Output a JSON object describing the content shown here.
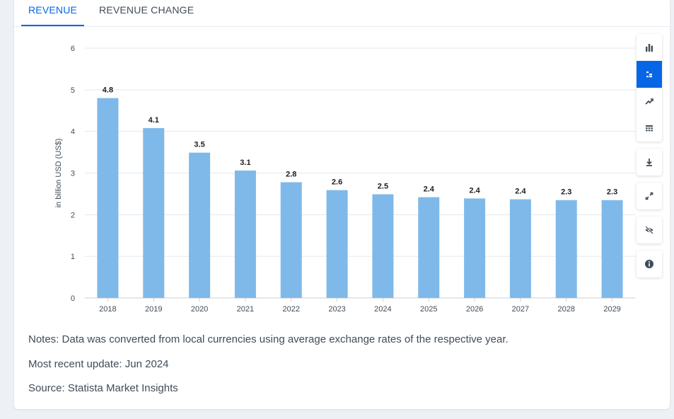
{
  "tabs": [
    {
      "label": "REVENUE",
      "active": true
    },
    {
      "label": "REVENUE CHANGE",
      "active": false
    }
  ],
  "chart_data": {
    "type": "bar",
    "title": "",
    "xlabel": "",
    "ylabel": "in billion USD (US$)",
    "categories": [
      "2018",
      "2019",
      "2020",
      "2021",
      "2022",
      "2023",
      "2024",
      "2025",
      "2026",
      "2027",
      "2028",
      "2029"
    ],
    "values": [
      4.8,
      4.08,
      3.49,
      3.06,
      2.78,
      2.59,
      2.49,
      2.42,
      2.39,
      2.37,
      2.35,
      2.35
    ],
    "data_labels": [
      "4.8",
      "4.1",
      "3.5",
      "3.1",
      "2.8",
      "2.6",
      "2.5",
      "2.4",
      "2.4",
      "2.4",
      "2.3",
      "2.3"
    ],
    "ylim": [
      0,
      6
    ],
    "yticks": [
      0,
      1,
      2,
      3,
      4,
      5,
      6
    ],
    "grid": true,
    "legend": "none",
    "bar_color": "#7fb9ea"
  },
  "notes": {
    "note": "Notes: Data was converted from local currencies using average exchange rates of the respective year.",
    "update": "Most recent update: Jun 2024",
    "source": "Source: Statista Market Insights"
  },
  "toolbar": {
    "chart_types": [
      {
        "icon": "bar-chart-icon",
        "active": false
      },
      {
        "icon": "horizontal-bar-chart-icon",
        "active": true
      },
      {
        "icon": "line-chart-icon",
        "active": false
      },
      {
        "icon": "table-icon",
        "active": false
      }
    ],
    "actions": [
      "download-icon",
      "fullscreen-icon",
      "hide-icon",
      "info-icon"
    ]
  },
  "colors": {
    "accent": "#0666e5",
    "text": "#404c5a",
    "grid": "#e3e7ec"
  }
}
